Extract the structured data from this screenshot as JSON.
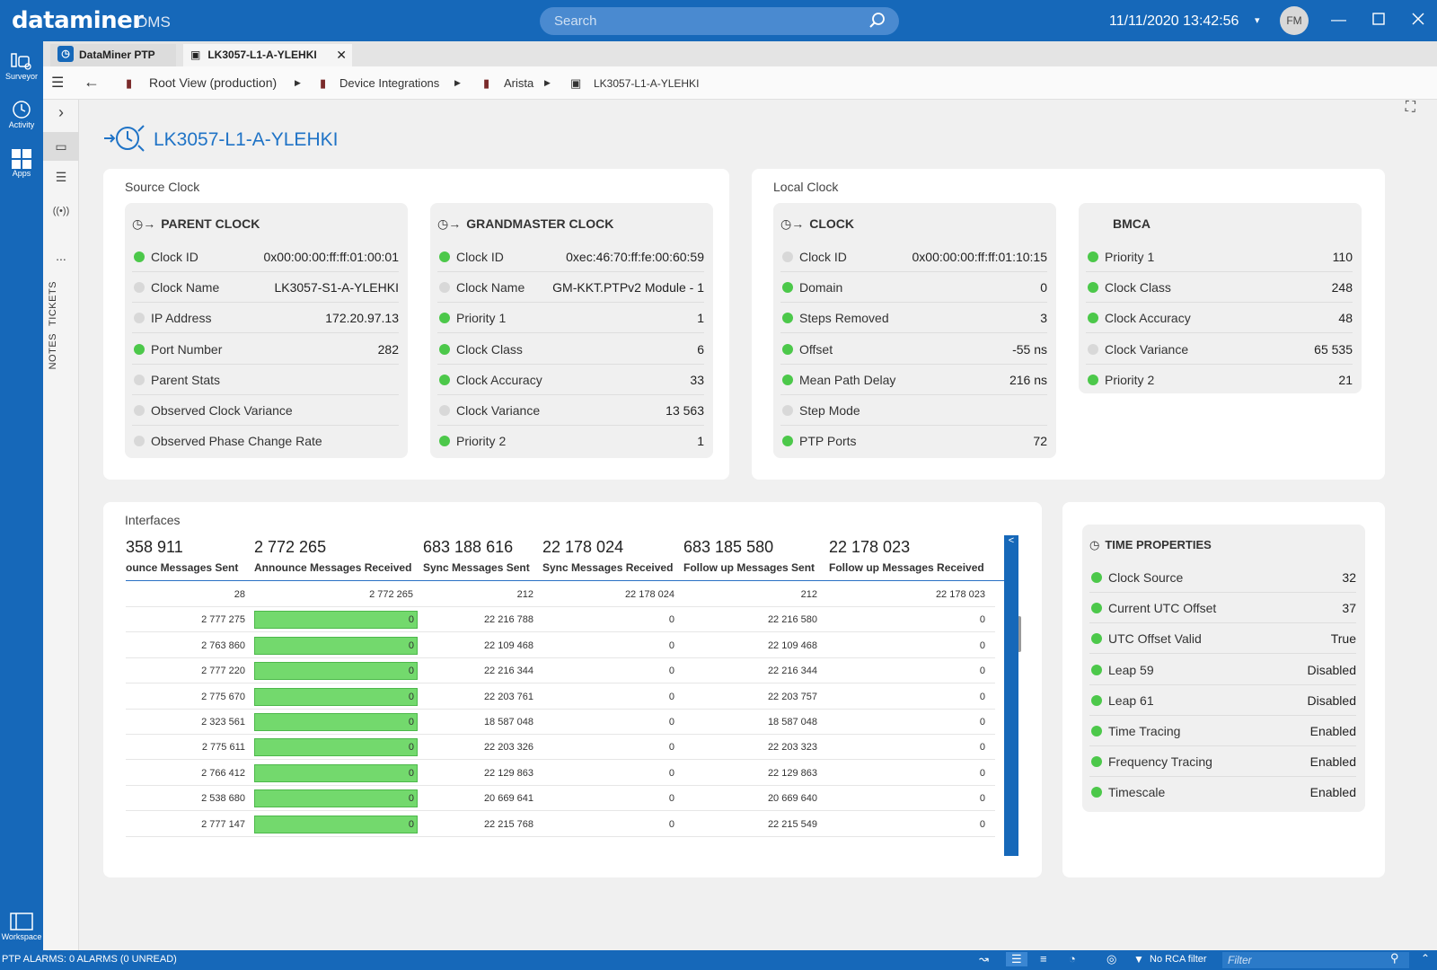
{
  "app": {
    "brand": "dataminer",
    "brand_sub": "DMS",
    "datetime": "11/11/2020 13:42:56",
    "avatar_initials": "FM"
  },
  "search": {
    "placeholder": "Search"
  },
  "leftnav": {
    "items": [
      {
        "label": "Surveyor",
        "icon": "surveyor-icon"
      },
      {
        "label": "Activity",
        "icon": "history-icon"
      },
      {
        "label": "Apps",
        "icon": "apps-grid-icon"
      }
    ],
    "bottom": {
      "label": "Workspace",
      "icon": "workspace-icon"
    }
  },
  "tabs": [
    {
      "label": "DataMiner PTP"
    },
    {
      "label": "LK3057-L1-A-YLEHKI"
    }
  ],
  "breadcrumb": [
    {
      "label": "Root View (production)"
    },
    {
      "label": "Device Integrations"
    },
    {
      "label": "Arista"
    },
    {
      "label": "LK3057-L1-A-YLEHKI"
    }
  ],
  "vtool": {
    "tickets": "TICKETS",
    "notes": "NOTES",
    "more": "..."
  },
  "page": {
    "title": "LK3057-L1-A-YLEHKI"
  },
  "source_clock": {
    "title": "Source Clock",
    "parent": {
      "title": "PARENT CLOCK",
      "rows": [
        {
          "label": "Clock ID",
          "value": "0x00:00:00:ff:ff:01:00:01",
          "status": "green"
        },
        {
          "label": "Clock Name",
          "value": "LK3057-S1-A-YLEHKI",
          "status": "grey"
        },
        {
          "label": "IP Address",
          "value": "172.20.97.13",
          "status": "grey"
        },
        {
          "label": "Port Number",
          "value": "282",
          "status": "green"
        },
        {
          "label": "Parent Stats",
          "value": "",
          "status": "grey"
        },
        {
          "label": "Observed Clock Variance",
          "value": "",
          "status": "grey"
        },
        {
          "label": "Observed Phase Change Rate",
          "value": "",
          "status": "grey"
        }
      ]
    },
    "grandmaster": {
      "title": "GRANDMASTER CLOCK",
      "rows": [
        {
          "label": "Clock ID",
          "value": "0xec:46:70:ff:fe:00:60:59",
          "status": "green"
        },
        {
          "label": "Clock Name",
          "value": "GM-KKT.PTPv2 Module - 1",
          "status": "grey"
        },
        {
          "label": "Priority 1",
          "value": "1",
          "status": "green"
        },
        {
          "label": "Clock Class",
          "value": "6",
          "status": "green"
        },
        {
          "label": "Clock Accuracy",
          "value": "33",
          "status": "green"
        },
        {
          "label": "Clock Variance",
          "value": "13 563",
          "status": "grey"
        },
        {
          "label": "Priority 2",
          "value": "1",
          "status": "green"
        }
      ]
    }
  },
  "local_clock": {
    "title": "Local Clock",
    "clock": {
      "title": "CLOCK",
      "rows": [
        {
          "label": "Clock ID",
          "value": "0x00:00:00:ff:ff:01:10:15",
          "status": "grey"
        },
        {
          "label": "Domain",
          "value": "0",
          "status": "green"
        },
        {
          "label": "Steps Removed",
          "value": "3",
          "status": "green"
        },
        {
          "label": "Offset",
          "value": "-55 ns",
          "status": "green"
        },
        {
          "label": "Mean Path Delay",
          "value": "216 ns",
          "status": "green"
        },
        {
          "label": "Step Mode",
          "value": "",
          "status": "grey"
        },
        {
          "label": "PTP Ports",
          "value": "72",
          "status": "green"
        }
      ]
    },
    "bmca": {
      "title": "BMCA",
      "rows": [
        {
          "label": "Priority 1",
          "value": "110",
          "status": "green"
        },
        {
          "label": "Clock Class",
          "value": "248",
          "status": "green"
        },
        {
          "label": "Clock Accuracy",
          "value": "48",
          "status": "green"
        },
        {
          "label": "Clock Variance",
          "value": "65 535",
          "status": "grey"
        },
        {
          "label": "Priority 2",
          "value": "21",
          "status": "green"
        }
      ]
    }
  },
  "interfaces": {
    "title": "Interfaces",
    "columns": [
      {
        "total": "358 911",
        "label": "ounce Messages Sent"
      },
      {
        "total": "2 772 265",
        "label": "Announce Messages Received"
      },
      {
        "total": "683 188 616",
        "label": "Sync Messages Sent"
      },
      {
        "total": "22 178 024",
        "label": "Sync Messages Received"
      },
      {
        "total": "683 185 580",
        "label": "Follow up Messages Sent"
      },
      {
        "total": "22 178 023",
        "label": "Follow up Messages Received"
      }
    ],
    "rows": [
      [
        "28",
        "2 772 265",
        "212",
        "22 178 024",
        "212",
        "22 178 023"
      ],
      [
        "2 777 275",
        "0",
        "22 216 788",
        "0",
        "22 216 580",
        "0"
      ],
      [
        "2 763 860",
        "0",
        "22 109 468",
        "0",
        "22 109 468",
        "0"
      ],
      [
        "2 777 220",
        "0",
        "22 216 344",
        "0",
        "22 216 344",
        "0"
      ],
      [
        "2 775 670",
        "0",
        "22 203 761",
        "0",
        "22 203 757",
        "0"
      ],
      [
        "2 323 561",
        "0",
        "18 587 048",
        "0",
        "18 587 048",
        "0"
      ],
      [
        "2 775 611",
        "0",
        "22 203 326",
        "0",
        "22 203 323",
        "0"
      ],
      [
        "2 766 412",
        "0",
        "22 129 863",
        "0",
        "22 129 863",
        "0"
      ],
      [
        "2 538 680",
        "0",
        "20 669 641",
        "0",
        "20 669 640",
        "0"
      ],
      [
        "2 777 147",
        "0",
        "22 215 768",
        "0",
        "22 215 549",
        "0"
      ]
    ],
    "bar_color": "#73d96d"
  },
  "time_properties": {
    "title": "TIME PROPERTIES",
    "rows": [
      {
        "label": "Clock Source",
        "value": "32",
        "status": "green"
      },
      {
        "label": "Current UTC Offset",
        "value": "37",
        "status": "green"
      },
      {
        "label": "UTC Offset Valid",
        "value": "True",
        "status": "green"
      },
      {
        "label": "Leap 59",
        "value": "Disabled",
        "status": "green"
      },
      {
        "label": "Leap 61",
        "value": "Disabled",
        "status": "green"
      },
      {
        "label": "Time Tracing",
        "value": "Enabled",
        "status": "green"
      },
      {
        "label": "Frequency Tracing",
        "value": "Enabled",
        "status": "green"
      },
      {
        "label": "Timescale",
        "value": "Enabled",
        "status": "green"
      }
    ]
  },
  "statusbar": {
    "alarms": "PTP ALARMS: 0 ALARMS (0 UNREAD)",
    "rca": "No RCA filter",
    "filter_placeholder": "Filter"
  },
  "colors": {
    "accent": "#1668b9",
    "ok": "#4cc84a",
    "neutral": "#d8d8d8"
  }
}
